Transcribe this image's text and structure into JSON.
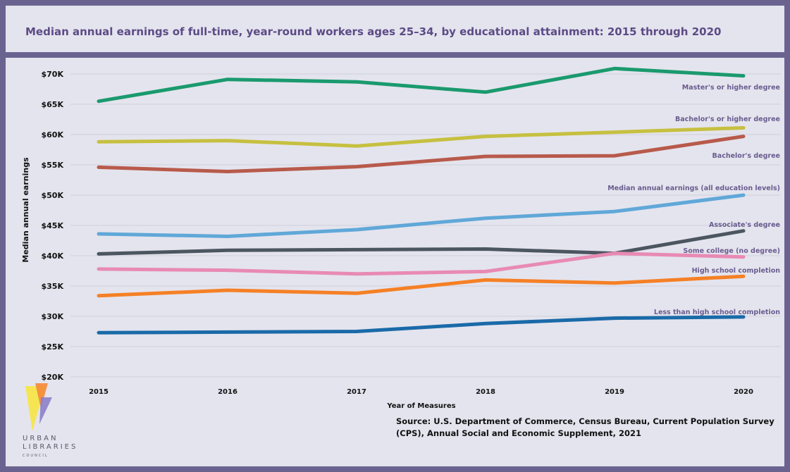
{
  "title": "Median annual earnings of full-time, year-round workers ages 25–34, by educational attainment: 2015 through 2020",
  "source": "Source: U.S. Department of Commerce, Census Bureau, Current Population Survey (CPS), Annual Social and Economic Supplement, 2021",
  "logo": {
    "line1": "URBAN",
    "line2": "LIBRARIES",
    "line3": "COUNCIL"
  },
  "colors": {
    "frame": "#6a6390",
    "background": "#e4e4ee",
    "title": "#5d4b86",
    "series_label": "#6a5c8e"
  },
  "chart_data": {
    "type": "line",
    "xlabel": "Year of Measures",
    "ylabel": "Median annual earnings",
    "x": [
      2015,
      2016,
      2017,
      2018,
      2019,
      2020
    ],
    "ylim": [
      20000,
      72000
    ],
    "yticks": [
      "$20K",
      "$25K",
      "$30K",
      "$35K",
      "$40K",
      "$45K",
      "$50K",
      "$55K",
      "$60K",
      "$65K",
      "$70K"
    ],
    "grid": true,
    "series": [
      {
        "name": "Master's or higher degree",
        "color": "#1a9a6e",
        "values": [
          65500,
          69100,
          68700,
          67000,
          70900,
          69700
        ]
      },
      {
        "name": "Bachelor's or higher degree",
        "color": "#c6c040",
        "values": [
          58800,
          59000,
          58100,
          59700,
          60400,
          61100
        ]
      },
      {
        "name": "Bachelor's degree",
        "color": "#b85a4b",
        "values": [
          54600,
          53900,
          54700,
          56400,
          56500,
          59700
        ]
      },
      {
        "name": "Median annual earnings (all education levels)",
        "color": "#60a8d8",
        "values": [
          43600,
          43200,
          44300,
          46200,
          47300,
          50000
        ]
      },
      {
        "name": "Associate's degree",
        "color": "#4b5660",
        "values": [
          40300,
          40900,
          41000,
          41100,
          40400,
          44100
        ]
      },
      {
        "name": "Some college (no degree)",
        "color": "#e88ab4",
        "values": [
          37800,
          37600,
          37000,
          37400,
          40400,
          39800
        ]
      },
      {
        "name": "High school completion",
        "color": "#f58025",
        "values": [
          33400,
          34300,
          33800,
          36000,
          35500,
          36600
        ]
      },
      {
        "name": "Less than high school completion",
        "color": "#1a6aa8",
        "values": [
          27300,
          27400,
          27500,
          28800,
          29700,
          29900
        ]
      }
    ]
  }
}
